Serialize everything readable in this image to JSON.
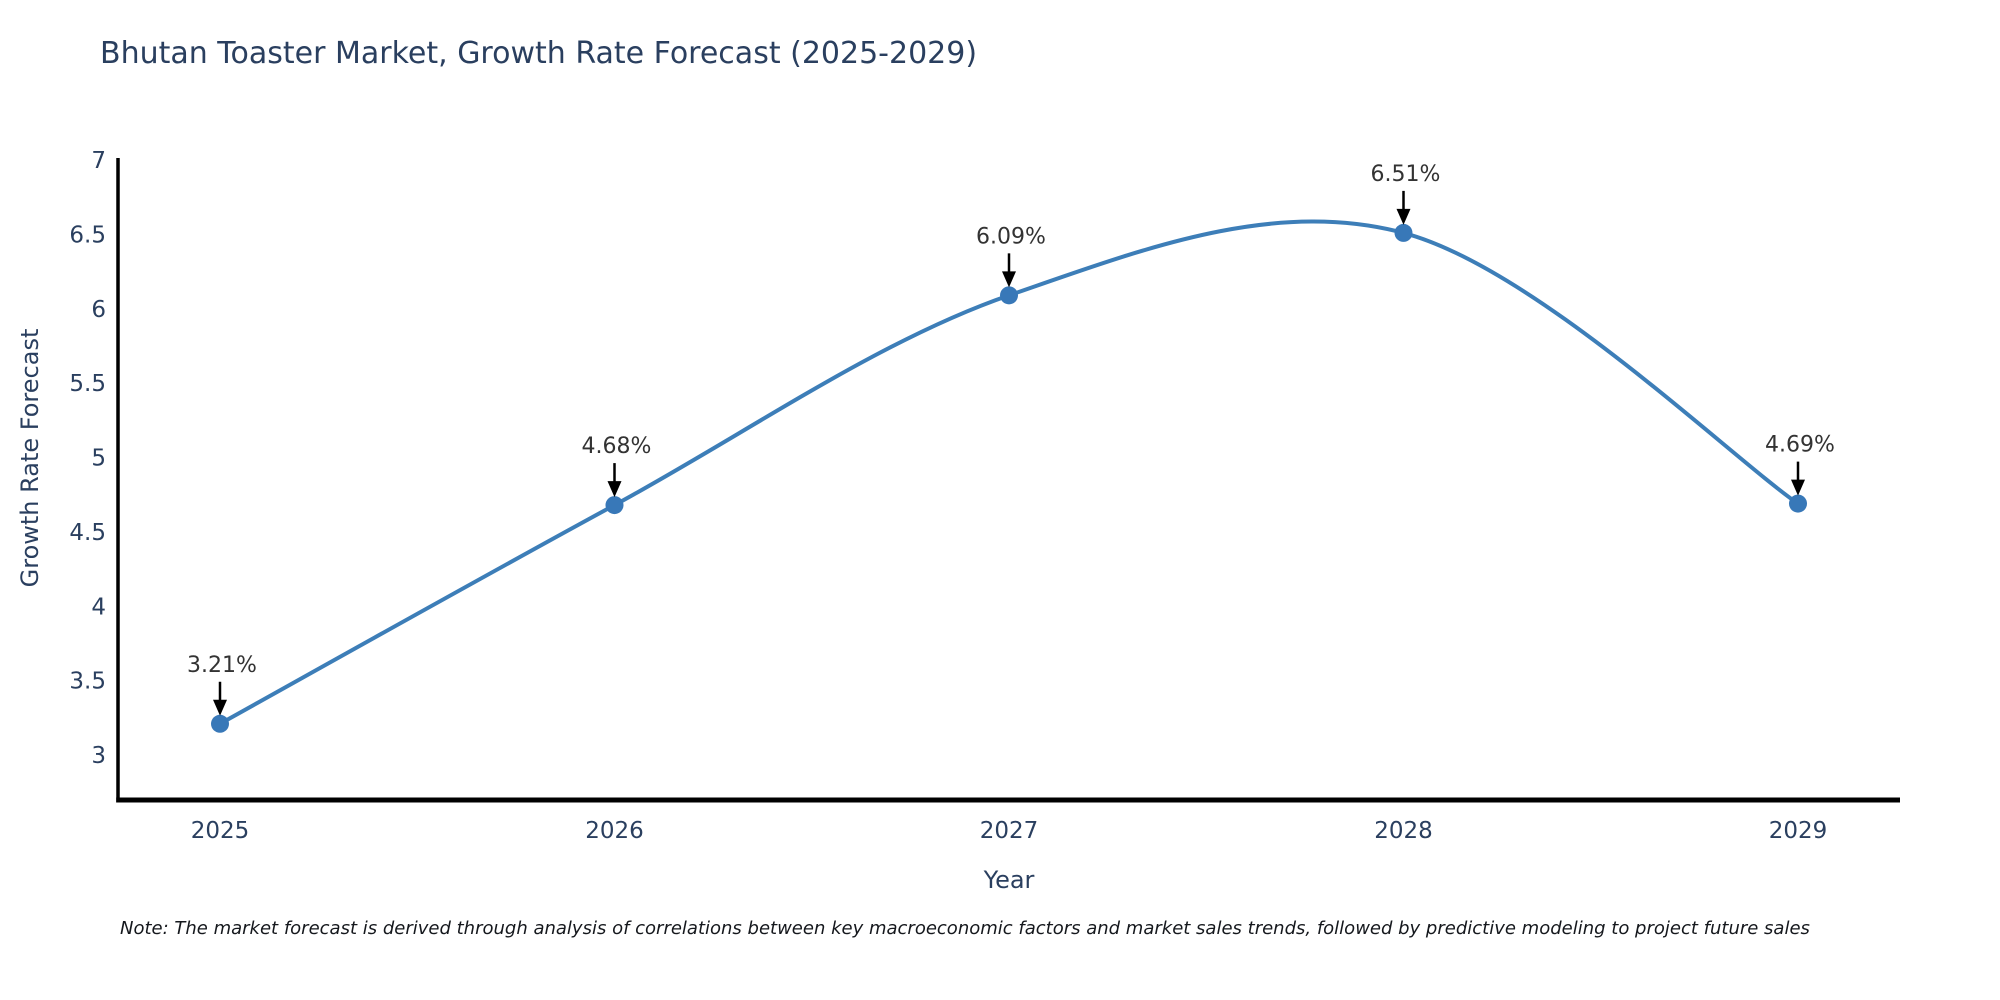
{
  "note": "Note: The market forecast is derived through analysis of correlations between key macroeconomic factors and market sales trends, followed by predictive modeling to project future sales",
  "colors": {
    "line": "#3d7eb8",
    "marker": "#3878b8",
    "axis": "#000000",
    "tick_text": "#2a3f5f",
    "annotation_text": "#333333",
    "arrow": "#000000",
    "background": "#ffffff"
  },
  "chart_data": {
    "type": "line",
    "title": "Bhutan Toaster Market, Growth Rate Forecast (2025-2029)",
    "xlabel": "Year",
    "ylabel": "Growth Rate Forecast",
    "categories": [
      "2025",
      "2026",
      "2027",
      "2028",
      "2029"
    ],
    "series": [
      {
        "name": "Growth Rate Forecast",
        "values": [
          3.21,
          4.68,
          6.09,
          6.51,
          4.69
        ]
      }
    ],
    "point_labels": [
      "3.21%",
      "4.68%",
      "6.09%",
      "6.51%",
      "4.69%"
    ],
    "yticks": [
      3,
      3.5,
      4,
      4.5,
      5,
      5.5,
      6,
      6.5,
      7
    ],
    "ylim": [
      2.7,
      7.0
    ],
    "line_shape": "spline",
    "grid": false,
    "legend_position": "none"
  }
}
